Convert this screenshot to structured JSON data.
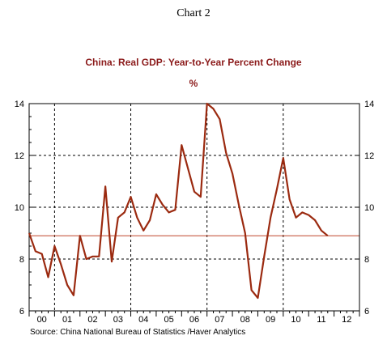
{
  "page_heading": "Chart 2",
  "chart_data": {
    "type": "line",
    "title": "China: Real GDP: Year-to-Year Percent Change",
    "subtitle": "%",
    "xlabel": "",
    "ylabel": "",
    "source": "Source:  China National Bureau of Statistics /Haver Analytics",
    "x_tick_labels": [
      "00",
      "01",
      "02",
      "03",
      "04",
      "05",
      "06",
      "07",
      "08",
      "09",
      "10",
      "11",
      "12"
    ],
    "y_ticks": [
      6,
      8,
      10,
      12,
      14
    ],
    "ylim": [
      6,
      14
    ],
    "xlim": [
      "2000-Q1",
      "2012-Q4"
    ],
    "grid": {
      "x_dashed_at_years": [
        "01",
        "04",
        "07",
        "10"
      ],
      "y_dashed": [
        8,
        10,
        12
      ]
    },
    "colors": {
      "series": "#9b2a10",
      "title": "#8b1a1a",
      "reference_line": "#c0462a"
    },
    "reference_line": {
      "y": 8.9
    },
    "series": [
      {
        "x": [
          "2000-Q1",
          "2000-Q2",
          "2000-Q3",
          "2000-Q4",
          "2001-Q1",
          "2001-Q2",
          "2001-Q3",
          "2001-Q4",
          "2002-Q1",
          "2002-Q2",
          "2002-Q3",
          "2002-Q4",
          "2003-Q1",
          "2003-Q2",
          "2003-Q3",
          "2003-Q4",
          "2004-Q1",
          "2004-Q2",
          "2004-Q3",
          "2004-Q4",
          "2005-Q1",
          "2005-Q2",
          "2005-Q3",
          "2005-Q4",
          "2006-Q1",
          "2006-Q2",
          "2006-Q3",
          "2006-Q4",
          "2007-Q1",
          "2007-Q2",
          "2007-Q3",
          "2007-Q4",
          "2008-Q1",
          "2008-Q2",
          "2008-Q3",
          "2008-Q4",
          "2009-Q1",
          "2009-Q2",
          "2009-Q3",
          "2009-Q4",
          "2010-Q1",
          "2010-Q2",
          "2010-Q3",
          "2010-Q4",
          "2011-Q1",
          "2011-Q2",
          "2011-Q3",
          "2011-Q4"
        ],
        "values": [
          9.0,
          8.3,
          8.2,
          7.3,
          8.5,
          7.8,
          7.0,
          6.6,
          8.9,
          8.0,
          8.1,
          8.1,
          10.8,
          7.9,
          9.6,
          9.8,
          10.4,
          9.6,
          9.1,
          9.5,
          10.5,
          10.1,
          9.8,
          9.9,
          12.4,
          11.5,
          10.6,
          10.4,
          14.0,
          13.8,
          13.4,
          12.1,
          11.3,
          10.1,
          9.0,
          6.8,
          6.5,
          8.1,
          9.6,
          10.7,
          11.9,
          10.3,
          9.6,
          9.8,
          9.7,
          9.5,
          9.1,
          8.9
        ]
      }
    ]
  }
}
